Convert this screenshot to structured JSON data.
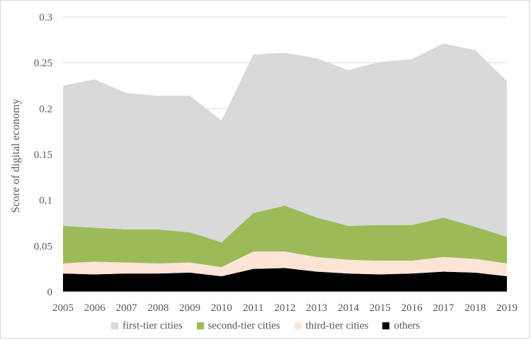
{
  "chart_data": {
    "type": "area",
    "stacked": true,
    "title": "",
    "xlabel": "",
    "ylabel": "Score of digital economy",
    "ylim": [
      0,
      0.3
    ],
    "yticks": [
      "0",
      "0.05",
      "0.1",
      "0.15",
      "0.2",
      "0.25",
      "0.3"
    ],
    "grid": true,
    "legend_position": "bottom",
    "categories": [
      "2005",
      "2006",
      "2007",
      "2008",
      "2009",
      "2010",
      "2011",
      "2012",
      "2013",
      "2014",
      "2015",
      "2016",
      "2017",
      "2018",
      "2019"
    ],
    "series": [
      {
        "name": "others",
        "color": "#000000",
        "values": [
          0.02,
          0.019,
          0.02,
          0.02,
          0.021,
          0.017,
          0.025,
          0.026,
          0.022,
          0.02,
          0.019,
          0.02,
          0.022,
          0.021,
          0.017
        ]
      },
      {
        "name": "third-tier cities",
        "color": "#fce4d6",
        "values": [
          0.011,
          0.014,
          0.012,
          0.011,
          0.011,
          0.01,
          0.019,
          0.018,
          0.016,
          0.015,
          0.015,
          0.014,
          0.016,
          0.015,
          0.014
        ]
      },
      {
        "name": "second-tier cities",
        "color": "#9bbb59",
        "values": [
          0.041,
          0.037,
          0.036,
          0.037,
          0.033,
          0.027,
          0.042,
          0.05,
          0.043,
          0.037,
          0.039,
          0.039,
          0.043,
          0.035,
          0.029
        ]
      },
      {
        "name": "first-tier cities",
        "color": "#d9d9d9",
        "values": [
          0.153,
          0.162,
          0.149,
          0.146,
          0.149,
          0.133,
          0.173,
          0.167,
          0.174,
          0.17,
          0.178,
          0.181,
          0.19,
          0.193,
          0.17
        ]
      }
    ],
    "legend_order": [
      "first-tier cities",
      "second-tier cities",
      "third-tier cities",
      "others"
    ]
  }
}
